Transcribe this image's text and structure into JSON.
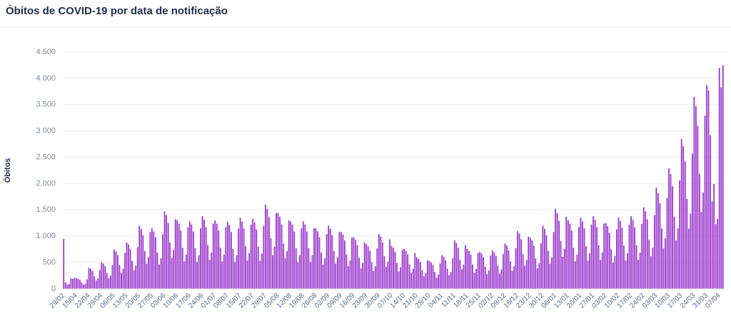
{
  "chart_data": {
    "type": "bar",
    "title": "Óbitos de COVID-19 por data de notificação",
    "y_label": "Óbitos",
    "color": "#9933cc",
    "grid": true,
    "ylim": [
      0,
      4500
    ],
    "yticks": [
      0,
      500,
      {
        "value": 1000,
        "label": "1.000"
      },
      {
        "value": 1500,
        "label": "1.500"
      },
      {
        "value": 2000,
        "label": "2.000"
      },
      {
        "value": 2500,
        "label": "2.500"
      },
      {
        "value": 3000,
        "label": "3.000"
      },
      {
        "value": 3500,
        "label": "3.500"
      },
      {
        "value": 4000,
        "label": "4.000"
      },
      {
        "value": 4500,
        "label": "4.500"
      }
    ],
    "categories": [
      "29/02",
      null,
      null,
      null,
      null,
      null,
      null,
      "15/04",
      null,
      null,
      null,
      null,
      null,
      null,
      "22/04",
      null,
      null,
      null,
      null,
      null,
      null,
      "29/04",
      null,
      null,
      null,
      null,
      null,
      null,
      "06/05",
      null,
      null,
      null,
      null,
      null,
      null,
      "13/05",
      null,
      null,
      null,
      null,
      null,
      null,
      "20/05",
      null,
      null,
      null,
      null,
      null,
      null,
      "27/05",
      null,
      null,
      null,
      null,
      null,
      null,
      "03/06",
      null,
      null,
      null,
      null,
      null,
      null,
      "10/06",
      null,
      null,
      null,
      null,
      null,
      null,
      "17/06",
      null,
      null,
      null,
      null,
      null,
      null,
      "24/06",
      null,
      null,
      null,
      null,
      null,
      null,
      "01/07",
      null,
      null,
      null,
      null,
      null,
      null,
      "08/07",
      null,
      null,
      null,
      null,
      null,
      null,
      "15/07",
      null,
      null,
      null,
      null,
      null,
      null,
      "22/07",
      null,
      null,
      null,
      null,
      null,
      null,
      "29/07",
      null,
      null,
      null,
      null,
      null,
      null,
      "05/08",
      null,
      null,
      null,
      null,
      null,
      null,
      "12/08",
      null,
      null,
      null,
      null,
      null,
      null,
      "19/08",
      null,
      null,
      null,
      null,
      null,
      null,
      "26/08",
      null,
      null,
      null,
      null,
      null,
      null,
      "02/09",
      null,
      null,
      null,
      null,
      null,
      null,
      "09/09",
      null,
      null,
      null,
      null,
      null,
      null,
      "16/09",
      null,
      null,
      null,
      null,
      null,
      null,
      "23/09",
      null,
      null,
      null,
      null,
      null,
      null,
      "30/09",
      null,
      null,
      null,
      null,
      null,
      null,
      "07/10",
      null,
      null,
      null,
      null,
      null,
      null,
      "14/10",
      null,
      null,
      null,
      null,
      null,
      null,
      "21/10",
      null,
      null,
      null,
      null,
      null,
      null,
      "28/10",
      null,
      null,
      null,
      null,
      null,
      null,
      "04/11",
      null,
      null,
      null,
      null,
      null,
      null,
      "11/11",
      null,
      null,
      null,
      null,
      null,
      null,
      "18/11",
      null,
      null,
      null,
      null,
      null,
      null,
      "25/11",
      null,
      null,
      null,
      null,
      null,
      null,
      "02/12",
      null,
      null,
      null,
      null,
      null,
      null,
      "09/12",
      null,
      null,
      null,
      null,
      null,
      null,
      "16/12",
      null,
      null,
      null,
      null,
      null,
      null,
      "23/12",
      null,
      null,
      null,
      null,
      null,
      null,
      "30/12",
      null,
      null,
      null,
      null,
      null,
      null,
      "06/01",
      null,
      null,
      null,
      null,
      null,
      null,
      "13/01",
      null,
      null,
      null,
      null,
      null,
      null,
      "20/01",
      null,
      null,
      null,
      null,
      null,
      null,
      "27/01",
      null,
      null,
      null,
      null,
      null,
      null,
      "03/02",
      null,
      null,
      null,
      null,
      null,
      null,
      "10/02",
      null,
      null,
      null,
      null,
      null,
      null,
      "17/02",
      null,
      null,
      null,
      null,
      null,
      null,
      "24/02",
      null,
      null,
      null,
      null,
      null,
      null,
      "03/03",
      null,
      null,
      null,
      null,
      null,
      null,
      "10/03",
      null,
      null,
      null,
      null,
      null,
      null,
      "17/03",
      null,
      null,
      null,
      null,
      null,
      null,
      "24/03",
      null,
      null,
      null,
      null,
      null,
      null,
      "31/03",
      null,
      null,
      null,
      null,
      null,
      null,
      "07/04",
      null,
      null
    ],
    "values": [
      950,
      120,
      80,
      90,
      200,
      190,
      210,
      200,
      190,
      170,
      120,
      80,
      100,
      180,
      400,
      380,
      340,
      240,
      160,
      200,
      360,
      500,
      480,
      430,
      300,
      200,
      250,
      450,
      750,
      710,
      640,
      450,
      300,
      380,
      680,
      880,
      840,
      750,
      530,
      350,
      440,
      790,
      1200,
      1140,
      1020,
      720,
      480,
      600,
      1080,
      1150,
      1090,
      980,
      690,
      460,
      580,
      1040,
      1470,
      1400,
      1250,
      880,
      590,
      740,
      1320,
      1300,
      1240,
      1110,
      780,
      520,
      650,
      1170,
      1280,
      1220,
      1090,
      770,
      510,
      640,
      1150,
      1380,
      1310,
      1170,
      830,
      550,
      690,
      1240,
      1300,
      1240,
      1110,
      780,
      520,
      650,
      1170,
      1270,
      1210,
      1080,
      760,
      510,
      640,
      1140,
      1350,
      1280,
      1150,
      810,
      540,
      680,
      1220,
      1330,
      1260,
      1130,
      800,
      530,
      670,
      1200,
      1600,
      1520,
      1360,
      960,
      640,
      800,
      1440,
      1440,
      1370,
      1220,
      860,
      580,
      720,
      1300,
      1280,
      1220,
      1090,
      770,
      510,
      640,
      1150,
      1280,
      1220,
      1090,
      770,
      510,
      640,
      1150,
      1150,
      1090,
      980,
      690,
      460,
      580,
      1040,
      1200,
      1140,
      1020,
      720,
      480,
      600,
      1080,
      1080,
      1030,
      920,
      650,
      430,
      540,
      970,
      980,
      930,
      830,
      590,
      390,
      490,
      880,
      850,
      810,
      720,
      510,
      340,
      430,
      770,
      1040,
      990,
      880,
      620,
      420,
      520,
      940,
      820,
      780,
      700,
      490,
      330,
      410,
      740,
      760,
      720,
      650,
      460,
      300,
      380,
      680,
      600,
      570,
      510,
      360,
      240,
      300,
      540,
      530,
      500,
      450,
      320,
      210,
      270,
      480,
      640,
      610,
      540,
      380,
      260,
      320,
      580,
      920,
      870,
      780,
      550,
      370,
      460,
      830,
      760,
      720,
      650,
      460,
      300,
      380,
      680,
      700,
      670,
      600,
      420,
      280,
      350,
      630,
      730,
      690,
      620,
      440,
      290,
      370,
      660,
      860,
      820,
      730,
      520,
      340,
      430,
      770,
      1100,
      1050,
      940,
      660,
      440,
      550,
      990,
      970,
      920,
      820,
      580,
      390,
      490,
      870,
      1200,
      1140,
      1020,
      720,
      480,
      600,
      1080,
      1520,
      1440,
      1290,
      910,
      610,
      760,
      1370,
      1300,
      1240,
      1110,
      780,
      520,
      650,
      1170,
      1350,
      1280,
      1150,
      810,
      540,
      680,
      1220,
      1380,
      1310,
      1170,
      830,
      550,
      690,
      1240,
      1250,
      1190,
      1060,
      750,
      500,
      630,
      1130,
      1360,
      1290,
      1160,
      820,
      540,
      680,
      1220,
      1380,
      1310,
      1170,
      830,
      550,
      690,
      1240,
      1550,
      1470,
      1320,
      930,
      620,
      780,
      1400,
      1920,
      1820,
      1630,
      1150,
      770,
      960,
      1730,
      2290,
      2180,
      1950,
      1370,
      920,
      1150,
      2060,
      2850,
      2710,
      2420,
      1710,
      1140,
      1430,
      2570,
      3650,
      3470,
      3100,
      2190,
      1460,
      1830,
      3290,
      3870,
      3770,
      2920,
      1660,
      1990,
      1230,
      1330,
      4200,
      3830,
      4250
    ]
  }
}
